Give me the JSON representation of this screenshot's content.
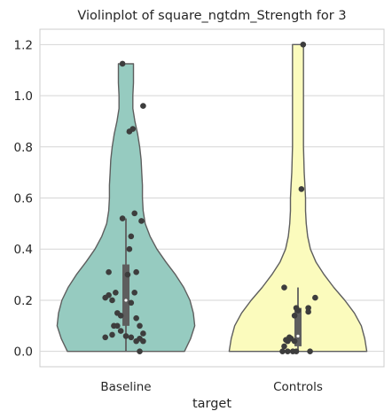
{
  "chart_data": {
    "type": "violin",
    "title": "Violinplot of square_ngtdm_Strength for 3",
    "xlabel": "target",
    "ylabel": "",
    "ylim": [
      -0.06,
      1.26
    ],
    "yticks": [
      0.0,
      0.2,
      0.4,
      0.6,
      0.8,
      1.0,
      1.2
    ],
    "ytick_labels": [
      "0.0",
      "0.2",
      "0.4",
      "0.6",
      "0.8",
      "1.0",
      "1.2"
    ],
    "grid": true,
    "categories": [
      "Baseline",
      "Controls"
    ],
    "series": [
      {
        "name": "Baseline",
        "color": "#96cbc0",
        "box": {
          "q1": 0.1,
          "median": 0.2,
          "q3": 0.34,
          "whisker_low": 0.0,
          "whisker_high": 0.52
        },
        "density_profile": [
          [
            0.0,
            0.85
          ],
          [
            0.05,
            0.94
          ],
          [
            0.1,
            1.0
          ],
          [
            0.15,
            0.98
          ],
          [
            0.2,
            0.93
          ],
          [
            0.25,
            0.84
          ],
          [
            0.3,
            0.72
          ],
          [
            0.35,
            0.58
          ],
          [
            0.4,
            0.45
          ],
          [
            0.45,
            0.35
          ],
          [
            0.5,
            0.28
          ],
          [
            0.55,
            0.25
          ],
          [
            0.6,
            0.24
          ],
          [
            0.65,
            0.24
          ],
          [
            0.7,
            0.23
          ],
          [
            0.75,
            0.22
          ],
          [
            0.8,
            0.2
          ],
          [
            0.85,
            0.17
          ],
          [
            0.9,
            0.13
          ],
          [
            0.95,
            0.1
          ],
          [
            1.0,
            0.1
          ],
          [
            1.05,
            0.11
          ],
          [
            1.1,
            0.11
          ],
          [
            1.125,
            0.11
          ]
        ],
        "points": [
          [
            -0.02,
            1.125
          ],
          [
            0.1,
            0.96
          ],
          [
            0.04,
            0.87
          ],
          [
            0.02,
            0.86
          ],
          [
            0.05,
            0.54
          ],
          [
            -0.02,
            0.52
          ],
          [
            0.09,
            0.51
          ],
          [
            0.03,
            0.45
          ],
          [
            0.02,
            0.4
          ],
          [
            -0.1,
            0.31
          ],
          [
            0.06,
            0.31
          ],
          [
            0.01,
            0.3
          ],
          [
            -0.06,
            0.23
          ],
          [
            -0.1,
            0.22
          ],
          [
            0.05,
            0.23
          ],
          [
            -0.12,
            0.21
          ],
          [
            -0.08,
            0.2
          ],
          [
            0.03,
            0.19
          ],
          [
            -0.05,
            0.15
          ],
          [
            -0.03,
            0.14
          ],
          [
            0.06,
            0.13
          ],
          [
            0.08,
            0.1
          ],
          [
            -0.05,
            0.1
          ],
          [
            -0.07,
            0.1
          ],
          [
            -0.03,
            0.08
          ],
          [
            0.1,
            0.07
          ],
          [
            -0.08,
            0.065
          ],
          [
            0.0,
            0.06
          ],
          [
            0.03,
            0.055
          ],
          [
            -0.12,
            0.055
          ],
          [
            0.08,
            0.05
          ],
          [
            0.06,
            0.04
          ],
          [
            0.1,
            0.04
          ],
          [
            0.08,
            0.0
          ]
        ]
      },
      {
        "name": "Controls",
        "color": "#fbfbbd",
        "box": {
          "q1": 0.02,
          "median": 0.06,
          "q3": 0.17,
          "whisker_low": 0.0,
          "whisker_high": 0.25
        },
        "density_profile": [
          [
            0.0,
            1.0
          ],
          [
            0.05,
            0.97
          ],
          [
            0.1,
            0.92
          ],
          [
            0.15,
            0.82
          ],
          [
            0.2,
            0.68
          ],
          [
            0.25,
            0.52
          ],
          [
            0.3,
            0.38
          ],
          [
            0.35,
            0.26
          ],
          [
            0.4,
            0.18
          ],
          [
            0.45,
            0.14
          ],
          [
            0.5,
            0.12
          ],
          [
            0.55,
            0.11
          ],
          [
            0.6,
            0.11
          ],
          [
            0.65,
            0.1
          ],
          [
            0.7,
            0.09
          ],
          [
            0.8,
            0.08
          ],
          [
            0.9,
            0.08
          ],
          [
            1.0,
            0.08
          ],
          [
            1.1,
            0.08
          ],
          [
            1.15,
            0.08
          ],
          [
            1.2,
            0.08
          ]
        ],
        "points": [
          [
            0.03,
            1.2
          ],
          [
            0.02,
            0.635
          ],
          [
            -0.08,
            0.25
          ],
          [
            0.1,
            0.21
          ],
          [
            0.06,
            0.17
          ],
          [
            -0.01,
            0.17
          ],
          [
            0.0,
            0.16
          ],
          [
            0.06,
            0.155
          ],
          [
            -0.02,
            0.14
          ],
          [
            -0.05,
            0.055
          ],
          [
            -0.04,
            0.05
          ],
          [
            -0.07,
            0.045
          ],
          [
            -0.06,
            0.04
          ],
          [
            -0.02,
            0.04
          ],
          [
            -0.08,
            0.02
          ],
          [
            -0.09,
            0.0
          ],
          [
            -0.06,
            0.0
          ],
          [
            -0.03,
            0.0
          ],
          [
            -0.01,
            0.0
          ],
          [
            0.07,
            0.0
          ]
        ]
      }
    ]
  }
}
